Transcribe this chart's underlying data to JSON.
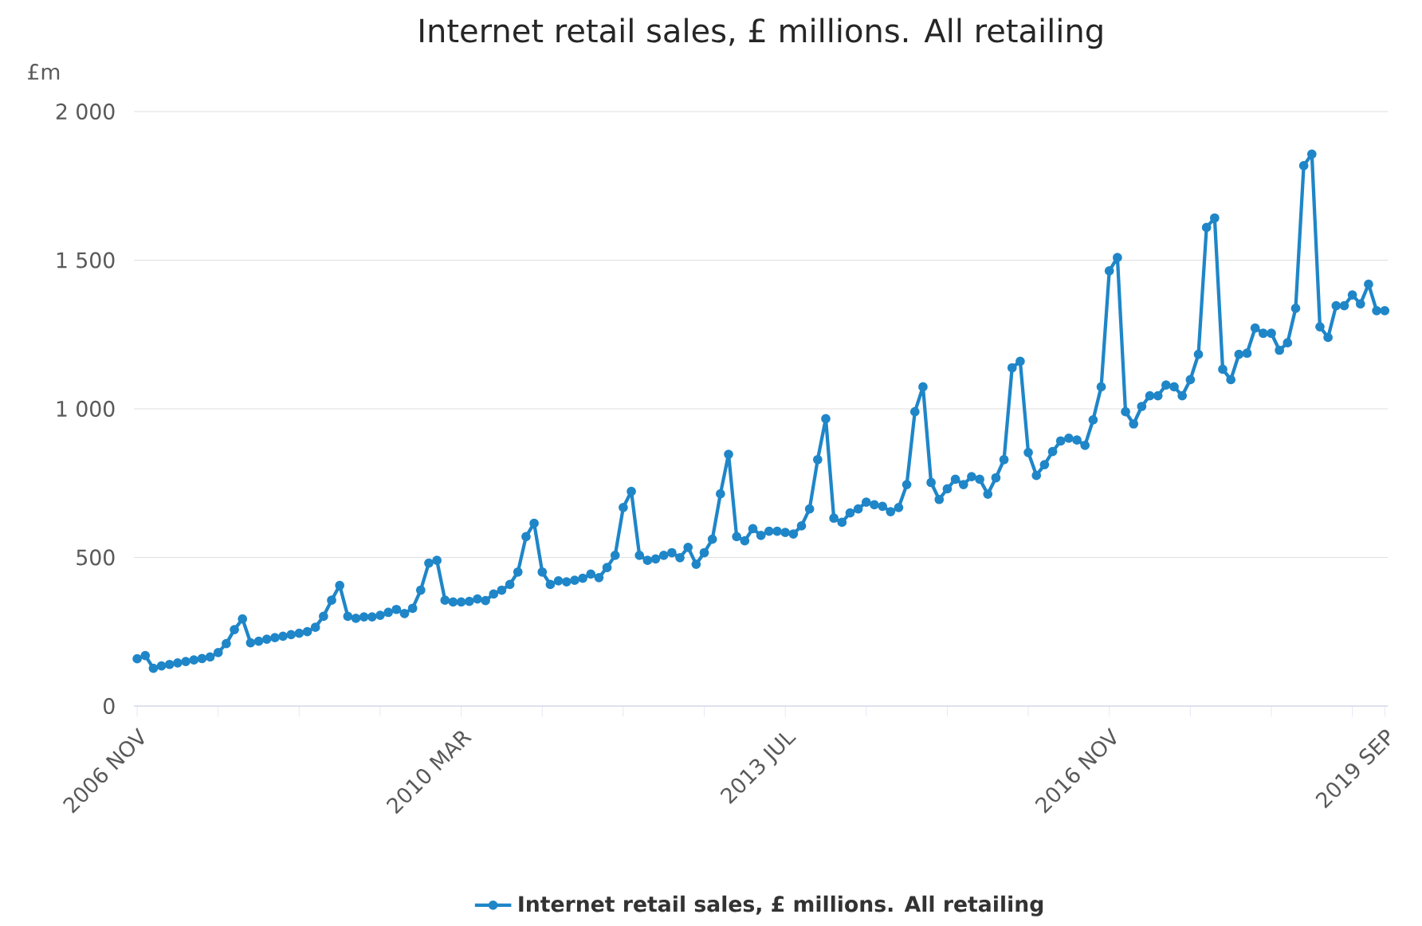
{
  "chart_data": {
    "type": "line",
    "title": "Internet retail sales, £ millions. All retailing",
    "ylabel": "£m",
    "categories": [
      "2006 NOV",
      null,
      null,
      null,
      null,
      null,
      null,
      null,
      null,
      null,
      null,
      null,
      null,
      null,
      null,
      null,
      null,
      null,
      null,
      null,
      null,
      null,
      null,
      null,
      null,
      null,
      null,
      null,
      null,
      null,
      null,
      null,
      null,
      null,
      null,
      null,
      null,
      null,
      null,
      null,
      "2010 MAR",
      null,
      null,
      null,
      null,
      null,
      null,
      null,
      null,
      null,
      null,
      null,
      null,
      null,
      null,
      null,
      null,
      null,
      null,
      null,
      null,
      null,
      null,
      null,
      null,
      null,
      null,
      null,
      null,
      null,
      null,
      null,
      null,
      null,
      null,
      null,
      null,
      null,
      null,
      null,
      "2013 JUL",
      null,
      null,
      null,
      null,
      null,
      null,
      null,
      null,
      null,
      null,
      null,
      null,
      null,
      null,
      null,
      null,
      null,
      null,
      null,
      null,
      null,
      null,
      null,
      null,
      null,
      null,
      null,
      null,
      null,
      null,
      null,
      null,
      null,
      null,
      null,
      null,
      null,
      null,
      null,
      "2016 NOV",
      null,
      null,
      null,
      null,
      null,
      null,
      null,
      null,
      null,
      null,
      null,
      null,
      null,
      null,
      null,
      null,
      null,
      null,
      null,
      null,
      null,
      null,
      null,
      null,
      null,
      null,
      null,
      null,
      null,
      null,
      null,
      null,
      null,
      "2019 SEP"
    ],
    "series": [
      {
        "name": "Internet retail sales, £ millions. All retailing",
        "color": "#1f86c8",
        "values": [
          159,
          170,
          127,
          135,
          140,
          145,
          150,
          155,
          160,
          165,
          180,
          210,
          257,
          293,
          213,
          218,
          225,
          230,
          235,
          240,
          245,
          250,
          265,
          302,
          356,
          406,
          302,
          295,
          300,
          300,
          305,
          315,
          325,
          311,
          329,
          390,
          481,
          490,
          356,
          350,
          350,
          352,
          360,
          355,
          377,
          390,
          409,
          451,
          570,
          615,
          451,
          409,
          421,
          418,
          423,
          430,
          444,
          432,
          466,
          507,
          668,
          722,
          507,
          490,
          495,
          507,
          516,
          499,
          534,
          477,
          516,
          561,
          714,
          847,
          570,
          556,
          597,
          574,
          588,
          588,
          584,
          579,
          606,
          663,
          829,
          967,
          632,
          618,
          650,
          663,
          686,
          677,
          672,
          654,
          668,
          745,
          990,
          1074,
          752,
          695,
          731,
          763,
          745,
          772,
          763,
          713,
          768,
          829,
          1138,
          1160,
          853,
          776,
          812,
          856,
          892,
          901,
          895,
          877,
          963,
          1074,
          1464,
          1509,
          990,
          949,
          1008,
          1044,
          1044,
          1080,
          1074,
          1044,
          1098,
          1183,
          1610,
          1642,
          1133,
          1098,
          1183,
          1187,
          1272,
          1254,
          1254,
          1197,
          1222,
          1338,
          1818,
          1857,
          1276,
          1240,
          1347,
          1347,
          1383,
          1353,
          1419,
          1330,
          1330
        ]
      }
    ],
    "ylim": [
      0,
      2000
    ],
    "yticks": [
      0,
      500,
      {
        "value": 1000,
        "label": "1 000"
      },
      {
        "value": 1500,
        "label": "1 500"
      },
      {
        "value": 2000,
        "label": "2 000"
      }
    ],
    "grid": "y",
    "legend": "bottom",
    "marker": "circle",
    "line_style": "solid"
  }
}
